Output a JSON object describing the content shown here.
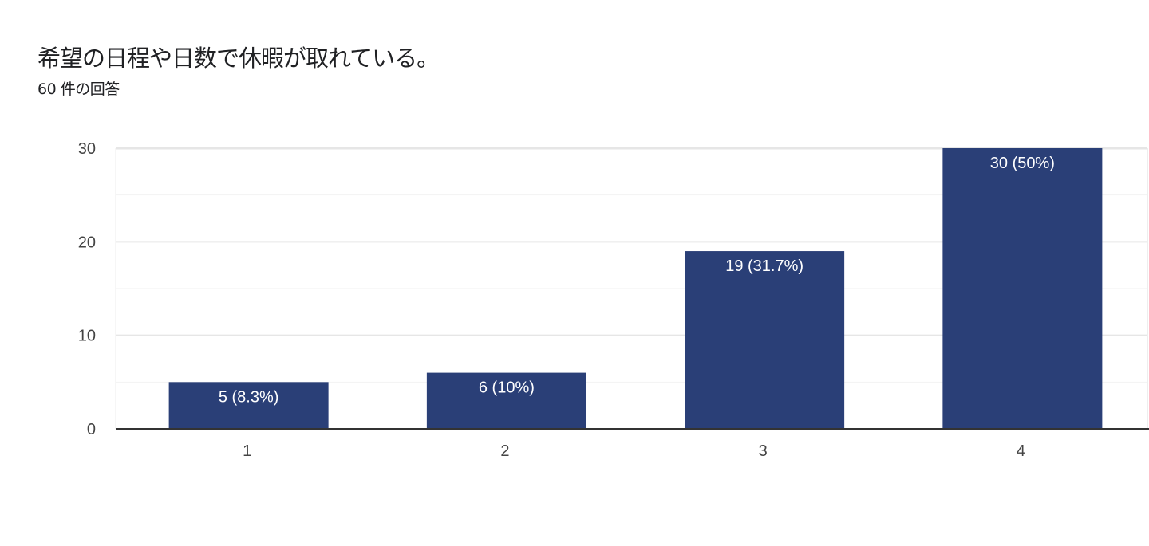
{
  "chart_data": {
    "type": "bar",
    "title": "希望の日程や日数で休暇が取れている。",
    "subtitle": "60 件の回答",
    "categories": [
      "1",
      "2",
      "3",
      "4"
    ],
    "values": [
      5,
      6,
      19,
      30
    ],
    "data_labels": [
      "5 (8.3%)",
      "6 (10%)",
      "19 (31.7%)",
      "30 (50%)"
    ],
    "ylim": [
      0,
      30
    ],
    "yticks": [
      "0",
      "10",
      "20",
      "30"
    ],
    "grid": true,
    "bar_color": "#2a3f77"
  }
}
